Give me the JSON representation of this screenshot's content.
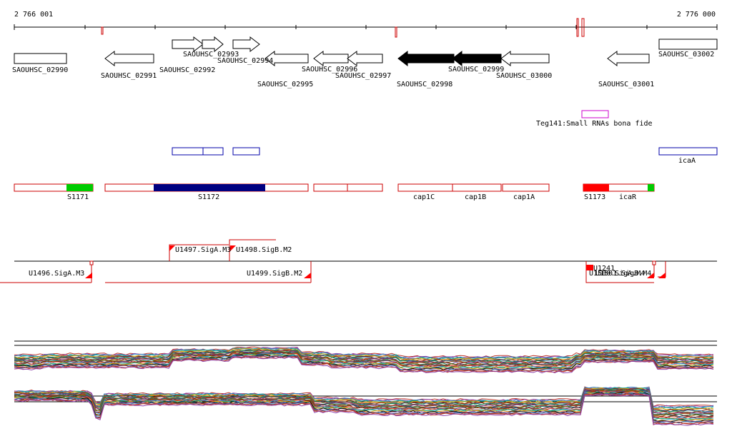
{
  "ruler": {
    "start_label": "2 766 001",
    "end_label": "2 776 000"
  },
  "colors": {
    "axis": "#000000",
    "gene_outline": "#000000",
    "gene_highlight": "#000000",
    "srna": "#cc00cc",
    "tu_outline": "#0000aa",
    "tu_fill": "#000080",
    "segment_outline": "#cc0000",
    "segment_red": "#ff0000",
    "segment_green": "#00cc00",
    "promoter": "#ff0000",
    "mark": "#cc0000"
  },
  "genes": [
    {
      "label": "SAOUHSC_02990",
      "dir": "rect",
      "highlight": false
    },
    {
      "label": "SAOUHSC_02991",
      "dir": "left",
      "highlight": false
    },
    {
      "label": "SAOUHSC_02992",
      "dir": "right",
      "highlight": false
    },
    {
      "label": "SAOUHSC_02993",
      "dir": "right",
      "highlight": false
    },
    {
      "label": "SAOUHSC_02994",
      "dir": "right",
      "highlight": false
    },
    {
      "label": "SAOUHSC_02995",
      "dir": "left",
      "highlight": false
    },
    {
      "label": "SAOUHSC_02996",
      "dir": "left",
      "highlight": false
    },
    {
      "label": "SAOUHSC_02997",
      "dir": "left",
      "highlight": false
    },
    {
      "label": "SAOUHSC_02998",
      "dir": "left",
      "highlight": true
    },
    {
      "label": "SAOUHSC_02999",
      "dir": "left",
      "highlight": true
    },
    {
      "label": "SAOUHSC_03000",
      "dir": "left",
      "highlight": false
    },
    {
      "label": "SAOUHSC_03001",
      "dir": "left",
      "highlight": false
    },
    {
      "label": "SAOUHSC_03002",
      "dir": "rect",
      "highlight": false
    }
  ],
  "srna": {
    "label": "Teg141:Small RNAs bona fide"
  },
  "tu_label": "icaA",
  "segments": [
    {
      "label": "S1171"
    },
    {
      "label": "S1172"
    },
    {
      "label": "cap1C"
    },
    {
      "label": "cap1B"
    },
    {
      "label": "cap1A"
    },
    {
      "label": "S1173"
    },
    {
      "label": "icaR"
    }
  ],
  "promoters": [
    {
      "label": "U1496.SigA.M3"
    },
    {
      "label": "U1497.SigA.M3"
    },
    {
      "label": "U1498.SigB.M2"
    },
    {
      "label": "U1499.SigB.M2"
    },
    {
      "label": "U1241"
    },
    {
      "label": "U1500.SigA.M4"
    },
    {
      "label": "U1501.SigB.M4"
    }
  ]
}
